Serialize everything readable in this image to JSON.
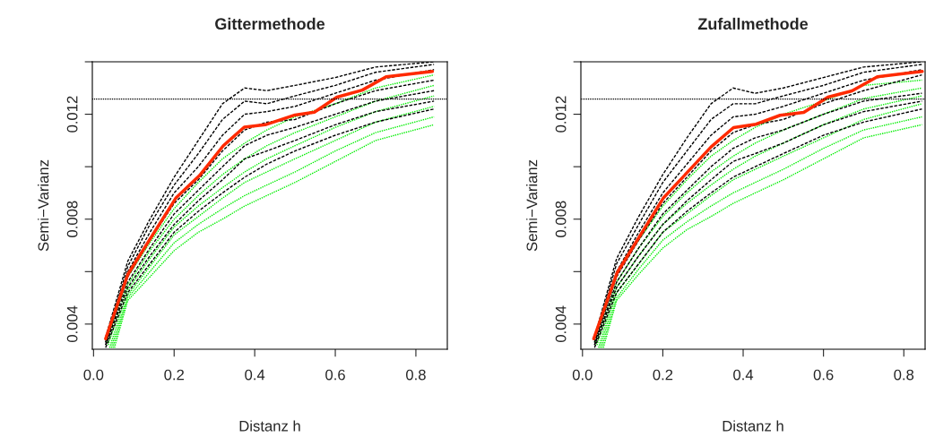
{
  "chart_data": [
    {
      "type": "line",
      "title": "Gittermethode",
      "xlabel": "Distanz h",
      "ylabel": "Semi−Varianz",
      "x": [
        0.03,
        0.085,
        0.14,
        0.2,
        0.26,
        0.32,
        0.375,
        0.43,
        0.5,
        0.6,
        0.7,
        0.845
      ],
      "xlim": [
        -0.003,
        0.878
      ],
      "xticks": [
        {
          "value": 0,
          "label": "0.0"
        },
        {
          "value": 0.2,
          "label": "0.2"
        },
        {
          "value": 0.4,
          "label": "0.4"
        },
        {
          "value": 0.6,
          "label": "0.6"
        },
        {
          "value": 0.8,
          "label": "0.8"
        }
      ],
      "ylim": [
        0.00304,
        0.014
      ],
      "yticks": [
        0.004,
        {
          "value": 0.006,
          "label": null
        },
        0.008,
        {
          "value": 0.01,
          "label": null
        },
        0.012,
        {
          "value": 0.014,
          "label": null
        }
      ],
      "ref_lines": [
        {
          "axis": "y",
          "value": 0.01258,
          "color": "#000000",
          "line_style": "dotted"
        }
      ],
      "series": [
        {
          "color": "#00ee00",
          "line_style": "dotted",
          "x": [
            0.032,
            0.085,
            0.14,
            0.2,
            0.26,
            0.32,
            0.375,
            0.43,
            0.5,
            0.6,
            0.7,
            0.845
          ],
          "values": [
            0.0033,
            0.0058,
            0.0071,
            0.0084,
            0.0094,
            0.0103,
            0.0109,
            0.0114,
            0.0119,
            0.0124,
            0.013,
            0.0135
          ]
        },
        {
          "color": "#00ee00",
          "line_style": "dotted",
          "x": [
            0.036,
            0.085,
            0.14,
            0.2,
            0.26,
            0.32,
            0.375,
            0.43,
            0.5,
            0.6,
            0.7,
            0.845
          ],
          "values": [
            0.0032,
            0.0055,
            0.0068,
            0.008,
            0.0089,
            0.0097,
            0.0103,
            0.0108,
            0.0113,
            0.0119,
            0.0125,
            0.0131
          ]
        },
        {
          "color": "#00ee00",
          "line_style": "dotted",
          "x": [
            0.04,
            0.085,
            0.14,
            0.2,
            0.26,
            0.32,
            0.375,
            0.43,
            0.5,
            0.6,
            0.7,
            0.845
          ],
          "values": [
            0.0031,
            0.0053,
            0.0065,
            0.0077,
            0.0085,
            0.0092,
            0.0098,
            0.0103,
            0.0108,
            0.0115,
            0.0121,
            0.0127
          ]
        },
        {
          "color": "#00ee00",
          "line_style": "dotted",
          "x": [
            0.044,
            0.085,
            0.14,
            0.2,
            0.26,
            0.32,
            0.375,
            0.43,
            0.5,
            0.6,
            0.7,
            0.845
          ],
          "values": [
            0.0031,
            0.0051,
            0.0062,
            0.0074,
            0.0081,
            0.0088,
            0.0094,
            0.0098,
            0.0103,
            0.011,
            0.0117,
            0.0123
          ]
        },
        {
          "color": "#00ee00",
          "line_style": "dotted",
          "x": [
            0.048,
            0.085,
            0.14,
            0.2,
            0.26,
            0.32,
            0.375,
            0.43,
            0.5,
            0.6,
            0.7,
            0.845
          ],
          "values": [
            0.0031,
            0.005,
            0.006,
            0.0071,
            0.0078,
            0.0084,
            0.0089,
            0.0093,
            0.0098,
            0.0106,
            0.0113,
            0.0119
          ]
        },
        {
          "color": "#00ee00",
          "line_style": "dotted",
          "x": [
            0.052,
            0.085,
            0.14,
            0.2,
            0.26,
            0.32,
            0.375,
            0.43,
            0.5,
            0.6,
            0.7,
            0.845
          ],
          "values": [
            0.0031,
            0.0049,
            0.0058,
            0.0068,
            0.0075,
            0.008,
            0.0085,
            0.0089,
            0.0094,
            0.0102,
            0.011,
            0.0116
          ]
        },
        {
          "color": "#000000",
          "line_style": "dashed",
          "values": [
            0.0035,
            0.0064,
            0.008,
            0.0096,
            0.011,
            0.0124,
            0.013,
            0.0129,
            0.0131,
            0.0134,
            0.0138,
            0.014
          ]
        },
        {
          "color": "#000000",
          "line_style": "dashed",
          "values": [
            0.0034,
            0.0062,
            0.0078,
            0.0093,
            0.0105,
            0.0118,
            0.0125,
            0.0124,
            0.0127,
            0.0131,
            0.0136,
            0.0139
          ]
        },
        {
          "color": "#000000",
          "line_style": "dashed",
          "values": [
            0.0033,
            0.006,
            0.0075,
            0.009,
            0.01,
            0.0112,
            0.012,
            0.0121,
            0.0123,
            0.0128,
            0.0133,
            0.0137
          ]
        },
        {
          "color": "#000000",
          "line_style": "dashed",
          "values": [
            0.0033,
            0.0058,
            0.0072,
            0.0086,
            0.0095,
            0.0106,
            0.0114,
            0.0117,
            0.0118,
            0.0124,
            0.0129,
            0.0133
          ]
        },
        {
          "color": "#000000",
          "line_style": "dashed",
          "values": [
            0.0032,
            0.0056,
            0.0069,
            0.0082,
            0.0091,
            0.01,
            0.0108,
            0.0112,
            0.0115,
            0.012,
            0.0125,
            0.0129
          ]
        },
        {
          "color": "#000000",
          "line_style": "dashed",
          "values": [
            0.0032,
            0.0054,
            0.0066,
            0.0078,
            0.0087,
            0.0095,
            0.0103,
            0.0106,
            0.011,
            0.0116,
            0.0121,
            0.0125
          ]
        },
        {
          "color": "#000000",
          "line_style": "dashed",
          "values": [
            0.0031,
            0.0052,
            0.0063,
            0.0075,
            0.0083,
            0.009,
            0.0096,
            0.0101,
            0.0106,
            0.0112,
            0.0117,
            0.0122
          ]
        },
        {
          "color": "#ff2a00",
          "line_style": "solid",
          "x": [
            0.03,
            0.085,
            0.204,
            0.263,
            0.322,
            0.374,
            0.426,
            0.5,
            0.548,
            0.604,
            0.667,
            0.726,
            0.841
          ],
          "values": [
            0.00344,
            0.00589,
            0.0088,
            0.00966,
            0.0108,
            0.01151,
            0.0116,
            0.01197,
            0.01208,
            0.01265,
            0.01292,
            0.01343,
            0.01363
          ]
        }
      ]
    },
    {
      "type": "line",
      "title": "Zufallmethode",
      "xlabel": "Distanz h",
      "ylabel": "Semi−Varianz",
      "x": [
        0.03,
        0.085,
        0.14,
        0.2,
        0.26,
        0.32,
        0.375,
        0.43,
        0.5,
        0.6,
        0.7,
        0.845
      ],
      "xlim": [
        -0.004,
        0.853
      ],
      "xticks": [
        {
          "value": 0,
          "label": "0.0"
        },
        {
          "value": 0.2,
          "label": "0.2"
        },
        {
          "value": 0.4,
          "label": "0.4"
        },
        {
          "value": 0.6,
          "label": "0.6"
        },
        {
          "value": 0.8,
          "label": "0.8"
        }
      ],
      "ylim": [
        0.00304,
        0.014
      ],
      "yticks": [
        0.004,
        {
          "value": 0.006,
          "label": null
        },
        0.008,
        {
          "value": 0.01,
          "label": null
        },
        0.012,
        {
          "value": 0.014,
          "label": null
        }
      ],
      "ref_lines": [
        {
          "axis": "y",
          "value": 0.01258,
          "color": "#000000",
          "line_style": "dotted"
        }
      ],
      "series": [
        {
          "color": "#00ee00",
          "line_style": "dotted",
          "x": [
            0.032,
            0.085,
            0.14,
            0.2,
            0.26,
            0.32,
            0.375,
            0.43,
            0.5,
            0.6,
            0.7,
            0.845
          ],
          "values": [
            0.0033,
            0.0059,
            0.0072,
            0.0085,
            0.0095,
            0.0104,
            0.011,
            0.0115,
            0.012,
            0.0125,
            0.0131,
            0.0133
          ]
        },
        {
          "color": "#00ee00",
          "line_style": "dotted",
          "x": [
            0.036,
            0.085,
            0.14,
            0.2,
            0.26,
            0.32,
            0.375,
            0.43,
            0.5,
            0.6,
            0.7,
            0.845
          ],
          "values": [
            0.0032,
            0.0056,
            0.0069,
            0.0081,
            0.009,
            0.0098,
            0.0104,
            0.0109,
            0.0114,
            0.012,
            0.0126,
            0.013
          ]
        },
        {
          "color": "#00ee00",
          "line_style": "dotted",
          "x": [
            0.04,
            0.085,
            0.14,
            0.2,
            0.26,
            0.32,
            0.375,
            0.43,
            0.5,
            0.6,
            0.7,
            0.845
          ],
          "values": [
            0.0031,
            0.0054,
            0.0066,
            0.0078,
            0.0086,
            0.0093,
            0.0099,
            0.0104,
            0.0109,
            0.0116,
            0.0122,
            0.0127
          ]
        },
        {
          "color": "#00ee00",
          "line_style": "dotted",
          "x": [
            0.044,
            0.085,
            0.14,
            0.2,
            0.26,
            0.32,
            0.375,
            0.43,
            0.5,
            0.6,
            0.7,
            0.845
          ],
          "values": [
            0.0031,
            0.0052,
            0.0063,
            0.0075,
            0.0082,
            0.0089,
            0.0095,
            0.0099,
            0.0104,
            0.0111,
            0.0118,
            0.0124
          ]
        },
        {
          "color": "#00ee00",
          "line_style": "dotted",
          "x": [
            0.048,
            0.085,
            0.14,
            0.2,
            0.26,
            0.32,
            0.375,
            0.43,
            0.5,
            0.6,
            0.7,
            0.845
          ],
          "values": [
            0.0031,
            0.005,
            0.0061,
            0.0072,
            0.0079,
            0.0085,
            0.009,
            0.0094,
            0.0099,
            0.0107,
            0.0114,
            0.0119
          ]
        },
        {
          "color": "#00ee00",
          "line_style": "dotted",
          "x": [
            0.052,
            0.085,
            0.14,
            0.2,
            0.26,
            0.32,
            0.375,
            0.43,
            0.5,
            0.6,
            0.7,
            0.845
          ],
          "values": [
            0.0031,
            0.0049,
            0.0059,
            0.0069,
            0.0076,
            0.0081,
            0.0086,
            0.009,
            0.0095,
            0.0103,
            0.0111,
            0.0116
          ]
        },
        {
          "color": "#000000",
          "line_style": "dashed",
          "values": [
            0.0035,
            0.0065,
            0.0081,
            0.0097,
            0.0111,
            0.0124,
            0.013,
            0.0128,
            0.013,
            0.0134,
            0.0138,
            0.014
          ]
        },
        {
          "color": "#000000",
          "line_style": "dashed",
          "values": [
            0.0034,
            0.0063,
            0.0078,
            0.0094,
            0.0106,
            0.0118,
            0.0124,
            0.0124,
            0.0127,
            0.0131,
            0.0136,
            0.0139
          ]
        },
        {
          "color": "#000000",
          "line_style": "dashed",
          "values": [
            0.0033,
            0.006,
            0.0075,
            0.009,
            0.0101,
            0.0112,
            0.0119,
            0.012,
            0.0123,
            0.0128,
            0.0133,
            0.0137
          ]
        },
        {
          "color": "#000000",
          "line_style": "dashed",
          "values": [
            0.0033,
            0.0058,
            0.0072,
            0.0086,
            0.0096,
            0.0106,
            0.0113,
            0.0116,
            0.0118,
            0.0124,
            0.0129,
            0.0135
          ]
        },
        {
          "color": "#000000",
          "line_style": "dashed",
          "values": [
            0.0032,
            0.0056,
            0.0069,
            0.0082,
            0.0091,
            0.01,
            0.0107,
            0.0111,
            0.0114,
            0.012,
            0.0125,
            0.0128
          ]
        },
        {
          "color": "#000000",
          "line_style": "dashed",
          "values": [
            0.0032,
            0.0054,
            0.0066,
            0.0078,
            0.0087,
            0.0095,
            0.0102,
            0.0105,
            0.0109,
            0.0116,
            0.0121,
            0.0125
          ]
        },
        {
          "color": "#000000",
          "line_style": "dashed",
          "values": [
            0.0031,
            0.0052,
            0.0063,
            0.0075,
            0.0083,
            0.009,
            0.0096,
            0.01,
            0.0105,
            0.0112,
            0.0117,
            0.0122
          ]
        },
        {
          "color": "#ff2a00",
          "line_style": "solid",
          "x": [
            0.028,
            0.086,
            0.201,
            0.32,
            0.376,
            0.432,
            0.492,
            0.551,
            0.611,
            0.671,
            0.734,
            0.846
          ],
          "values": [
            0.00344,
            0.00595,
            0.0088,
            0.01075,
            0.01149,
            0.01162,
            0.01196,
            0.01207,
            0.01265,
            0.01289,
            0.01343,
            0.01363
          ]
        }
      ]
    }
  ]
}
